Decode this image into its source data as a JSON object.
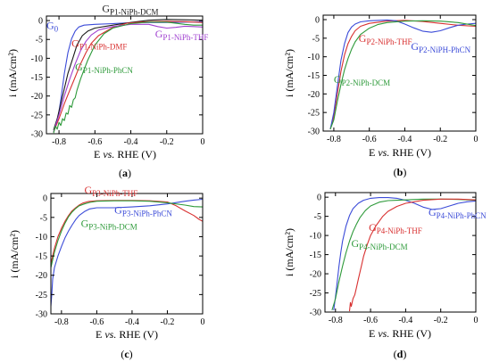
{
  "chart_data": [
    {
      "type": "line",
      "panel_label": "(a)",
      "xlabel": "E vs. RHE (V)",
      "xlabel_parts": [
        "E ",
        "vs.",
        " RHE (V)"
      ],
      "ylabel": "i (mA/cm²)",
      "xlim": [
        -0.87,
        0.0
      ],
      "ylim": [
        -30,
        1.2
      ],
      "xticks": [
        "-0.8",
        "-0.6",
        "-0.4",
        "-0.2",
        "0"
      ],
      "xtick_values": [
        -0.8,
        -0.6,
        -0.4,
        -0.2,
        0.0
      ],
      "yticks": [
        "0",
        "-5",
        "-10",
        "-15",
        "-20",
        "-25",
        "-30"
      ],
      "ytick_values": [
        0,
        -5,
        -10,
        -15,
        -20,
        -25,
        -30
      ],
      "series": [
        {
          "name": "G0",
          "color": "#3b4bd8",
          "x": [
            -0.83,
            -0.81,
            -0.79,
            -0.77,
            -0.75,
            -0.73,
            -0.71,
            -0.69,
            -0.66,
            -0.6,
            -0.5,
            -0.4,
            -0.3,
            -0.2,
            -0.1,
            0.0
          ],
          "y": [
            -29.5,
            -27.0,
            -21.0,
            -14.0,
            -8.5,
            -4.8,
            -2.8,
            -1.7,
            -1.2,
            -1.0,
            -0.8,
            -0.6,
            -0.5,
            -0.5,
            -0.4,
            -0.3
          ]
        },
        {
          "name": "GP1-NiPh-DCM",
          "color": "#1a1a1a",
          "x": [
            -0.83,
            -0.81,
            -0.79,
            -0.77,
            -0.75,
            -0.72,
            -0.7,
            -0.67,
            -0.64,
            -0.6,
            -0.5,
            -0.4,
            -0.3,
            -0.2,
            -0.1,
            0.0
          ],
          "y": [
            -29.0,
            -26.0,
            -22.0,
            -18.0,
            -14.0,
            -9.5,
            -6.5,
            -4.0,
            -2.8,
            -2.0,
            -1.2,
            -0.5,
            0.1,
            0.3,
            0.2,
            0.1
          ]
        },
        {
          "name": "GP1-NiPh-DMF",
          "color": "#d83030",
          "x": [
            -0.83,
            -0.8,
            -0.77,
            -0.74,
            -0.71,
            -0.68,
            -0.65,
            -0.62,
            -0.58,
            -0.5,
            -0.42,
            -0.35,
            -0.3,
            -0.2,
            -0.1,
            0.0
          ],
          "y": [
            -29.5,
            -26.0,
            -22.0,
            -18.5,
            -15.0,
            -11.5,
            -8.5,
            -6.0,
            -4.0,
            -1.8,
            -0.7,
            -0.4,
            -0.3,
            -0.2,
            -0.3,
            -0.5
          ]
        },
        {
          "name": "GP1-NiPh-THF",
          "color": "#a040d0",
          "x": [
            -0.83,
            -0.8,
            -0.77,
            -0.74,
            -0.71,
            -0.68,
            -0.65,
            -0.62,
            -0.58,
            -0.5,
            -0.4,
            -0.3,
            -0.25,
            -0.2,
            -0.15,
            -0.1,
            -0.05,
            0.0
          ],
          "y": [
            -29.5,
            -25.0,
            -20.0,
            -15.5,
            -11.5,
            -8.0,
            -5.5,
            -3.8,
            -2.5,
            -1.6,
            -1.0,
            -1.0,
            -1.6,
            -2.0,
            -1.8,
            -1.5,
            -1.6,
            -1.7
          ]
        },
        {
          "name": "GP1-NiPh-PhCN",
          "color": "#2e9a3a",
          "x": [
            -0.83,
            -0.82,
            -0.81,
            -0.8,
            -0.79,
            -0.78,
            -0.77,
            -0.76,
            -0.75,
            -0.74,
            -0.73,
            -0.72,
            -0.71,
            -0.7,
            -0.68,
            -0.66,
            -0.64,
            -0.62,
            -0.6,
            -0.55,
            -0.5,
            -0.4,
            -0.3,
            -0.2,
            -0.1,
            -0.05,
            0.0
          ],
          "y": [
            -29.8,
            -28.0,
            -28.8,
            -27.0,
            -27.8,
            -26.0,
            -26.5,
            -24.5,
            -24.8,
            -22.5,
            -23.0,
            -21.0,
            -20.5,
            -18.5,
            -15.5,
            -13.0,
            -10.5,
            -8.5,
            -6.5,
            -3.5,
            -2.0,
            -0.8,
            -0.4,
            -0.4,
            -1.0,
            -1.2,
            -1.2
          ]
        }
      ],
      "annotations": [
        {
          "base": "G",
          "sub": "P1-NiPh-DCM",
          "color": "#1a1a1a",
          "x": -0.56,
          "y": 2.3
        },
        {
          "base": "G",
          "sub": "0",
          "color": "#3b4bd8",
          "x": -0.87,
          "y": -2.2
        },
        {
          "base": "G",
          "sub": "P1-NiPh-DMF",
          "color": "#d83030",
          "x": -0.73,
          "y": -7.0
        },
        {
          "base": "G",
          "sub": "P1-NiPh-THF",
          "color": "#a040d0",
          "x": -0.265,
          "y": -4.5
        },
        {
          "base": "G",
          "sub": "P1-NiPh-PhCN",
          "color": "#2e9a3a",
          "x": -0.71,
          "y": -13.2
        }
      ]
    },
    {
      "type": "line",
      "panel_label": "(b)",
      "xlabel": "E vs. RHE (V)",
      "xlabel_parts": [
        "E ",
        "vs.",
        " RHE (V)"
      ],
      "ylabel": "i (mA/cm²)",
      "xlim": [
        -0.86,
        0.0
      ],
      "ylim": [
        -30,
        1.2
      ],
      "xticks": [
        "-0.8",
        "-0.6",
        "-0.4",
        "-0.2",
        "0"
      ],
      "xtick_values": [
        -0.8,
        -0.6,
        -0.4,
        -0.2,
        0.0
      ],
      "yticks": [
        "0",
        "-5",
        "-10",
        "-15",
        "-20",
        "-25",
        "-30"
      ],
      "ytick_values": [
        0,
        -5,
        -10,
        -15,
        -20,
        -25,
        -30
      ],
      "series": [
        {
          "name": "GP2-NiPh-THF",
          "color": "#d83030",
          "x": [
            -0.82,
            -0.8,
            -0.78,
            -0.76,
            -0.74,
            -0.72,
            -0.7,
            -0.68,
            -0.65,
            -0.6,
            -0.5,
            -0.4,
            -0.3,
            -0.2,
            -0.1,
            0.0
          ],
          "y": [
            -29.5,
            -26.0,
            -20.0,
            -14.0,
            -9.5,
            -6.5,
            -4.5,
            -3.0,
            -1.8,
            -1.0,
            -0.4,
            -0.2,
            -0.5,
            -1.0,
            -1.5,
            -1.8
          ]
        },
        {
          "name": "GP2-NiPH-PhCN",
          "color": "#3b4bd8",
          "x": [
            -0.82,
            -0.8,
            -0.78,
            -0.76,
            -0.74,
            -0.72,
            -0.7,
            -0.68,
            -0.65,
            -0.6,
            -0.5,
            -0.45,
            -0.4,
            -0.35,
            -0.3,
            -0.25,
            -0.2,
            -0.15,
            -0.1,
            -0.05,
            0.0
          ],
          "y": [
            -29.5,
            -25.0,
            -18.0,
            -11.0,
            -6.5,
            -3.5,
            -2.0,
            -1.2,
            -0.6,
            -0.3,
            -0.1,
            -0.3,
            -1.2,
            -2.2,
            -3.1,
            -3.4,
            -3.0,
            -2.2,
            -1.5,
            -1.2,
            -1.0
          ]
        },
        {
          "name": "GP2-NiPh-DCM",
          "color": "#2e9a3a",
          "x": [
            -0.82,
            -0.8,
            -0.78,
            -0.76,
            -0.74,
            -0.72,
            -0.7,
            -0.68,
            -0.65,
            -0.6,
            -0.55,
            -0.5,
            -0.4,
            -0.3,
            -0.2,
            -0.1,
            0.0
          ],
          "y": [
            -29.5,
            -27.0,
            -22.0,
            -17.5,
            -13.5,
            -10.5,
            -8.0,
            -6.0,
            -4.0,
            -2.3,
            -1.3,
            -0.8,
            -0.4,
            -0.3,
            -0.4,
            -0.8,
            -1.6
          ]
        }
      ],
      "annotations": [
        {
          "base": "G",
          "sub": "P2-NiPh-THF",
          "color": "#d83030",
          "x": -0.66,
          "y": -6.0
        },
        {
          "base": "G",
          "sub": "P2-NiPH-PhCN",
          "color": "#3b4bd8",
          "x": -0.365,
          "y": -8.2
        },
        {
          "base": "G",
          "sub": "P2-NiPh-DCM",
          "color": "#2e9a3a",
          "x": -0.8,
          "y": -17.0
        }
      ]
    },
    {
      "type": "line",
      "panel_label": "(c)",
      "xlabel": "E vs. RHE (V)",
      "xlabel_parts": [
        "E ",
        "vs.",
        " RHE (V)"
      ],
      "ylabel": "i (mA/cm²)",
      "xlim": [
        -0.86,
        0.0
      ],
      "ylim": [
        -30,
        1.2
      ],
      "xticks": [
        "-0.8",
        "-0.6",
        "-0.4",
        "-0.2",
        "0"
      ],
      "xtick_values": [
        -0.8,
        -0.6,
        -0.4,
        -0.2,
        0.0
      ],
      "yticks": [
        "0",
        "-5",
        "-10",
        "-15",
        "-20",
        "-25",
        "-30"
      ],
      "ytick_values": [
        0,
        -5,
        -10,
        -15,
        -20,
        -25,
        -30
      ],
      "series": [
        {
          "name": "GP3-NiPh-THF",
          "color": "#d83030",
          "x": [
            -0.86,
            -0.84,
            -0.82,
            -0.8,
            -0.78,
            -0.76,
            -0.74,
            -0.72,
            -0.7,
            -0.68,
            -0.65,
            -0.6,
            -0.5,
            -0.4,
            -0.3,
            -0.2,
            -0.15,
            -0.1,
            -0.05,
            -0.02,
            0.0
          ],
          "y": [
            -17.0,
            -13.0,
            -10.0,
            -7.8,
            -6.0,
            -4.5,
            -3.3,
            -2.5,
            -1.8,
            -1.3,
            -0.9,
            -0.7,
            -0.6,
            -0.6,
            -0.7,
            -1.0,
            -2.0,
            -3.3,
            -4.5,
            -5.5,
            -6.0
          ]
        },
        {
          "name": "GP3-NiPh-PhCN",
          "color": "#3b4bd8",
          "x": [
            -0.86,
            -0.855,
            -0.85,
            -0.84,
            -0.82,
            -0.8,
            -0.78,
            -0.76,
            -0.74,
            -0.72,
            -0.7,
            -0.67,
            -0.64,
            -0.6,
            -0.5,
            -0.4,
            -0.3,
            -0.2,
            -0.1,
            -0.05,
            0.0
          ],
          "y": [
            -28.0,
            -25.0,
            -21.0,
            -18.0,
            -15.0,
            -12.5,
            -10.3,
            -8.5,
            -7.0,
            -5.6,
            -4.5,
            -3.5,
            -2.8,
            -2.5,
            -2.5,
            -2.3,
            -2.0,
            -1.5,
            -0.8,
            -0.5,
            -0.3
          ]
        },
        {
          "name": "GP3-NiPh-DCM",
          "color": "#2e9a3a",
          "x": [
            -0.86,
            -0.84,
            -0.82,
            -0.8,
            -0.78,
            -0.76,
            -0.74,
            -0.72,
            -0.7,
            -0.67,
            -0.64,
            -0.6,
            -0.5,
            -0.4,
            -0.3,
            -0.2,
            -0.1,
            -0.05,
            0.0
          ],
          "y": [
            -18.0,
            -14.0,
            -11.0,
            -8.5,
            -6.5,
            -4.8,
            -3.6,
            -2.7,
            -2.0,
            -1.5,
            -1.1,
            -0.8,
            -0.7,
            -0.7,
            -0.8,
            -1.2,
            -1.8,
            -2.2,
            -2.3
          ]
        }
      ],
      "annotations": [
        {
          "base": "G",
          "sub": "P3-NiPh-THF",
          "color": "#d83030",
          "x": -0.67,
          "y": 1.2
        },
        {
          "base": "G",
          "sub": "P3-NiPh-PhCN",
          "color": "#3b4bd8",
          "x": -0.5,
          "y": -4.0
        },
        {
          "base": "G",
          "sub": "P3-NiPh-DCM",
          "color": "#2e9a3a",
          "x": -0.69,
          "y": -7.5
        }
      ]
    },
    {
      "type": "line",
      "panel_label": "(d)",
      "xlabel": "E vs. RHE (V)",
      "xlabel_parts": [
        "E ",
        "vs.",
        " RHE (V)"
      ],
      "ylabel": "i (mA/cm²)",
      "xlim": [
        -0.86,
        0.0
      ],
      "ylim": [
        -30,
        1.2
      ],
      "xticks": [
        "-0.8",
        "-0.6",
        "-0.4",
        "-0.2",
        "0"
      ],
      "xtick_values": [
        -0.8,
        -0.6,
        -0.4,
        -0.2,
        0.0
      ],
      "yticks": [
        "0",
        "-5",
        "-10",
        "-15",
        "-20",
        "-25",
        "-30"
      ],
      "ytick_values": [
        0,
        -5,
        -10,
        -15,
        -20,
        -25,
        -30
      ],
      "series": [
        {
          "name": "GP4-NiPh-PhCN",
          "color": "#3b4bd8",
          "x": [
            -0.81,
            -0.8,
            -0.79,
            -0.78,
            -0.77,
            -0.76,
            -0.74,
            -0.72,
            -0.7,
            -0.67,
            -0.64,
            -0.6,
            -0.55,
            -0.5,
            -0.45,
            -0.4,
            -0.35,
            -0.3,
            -0.25,
            -0.2,
            -0.15,
            -0.1,
            -0.05,
            0.0
          ],
          "y": [
            -29.5,
            -26.0,
            -22.0,
            -18.0,
            -14.5,
            -11.5,
            -7.5,
            -4.8,
            -3.0,
            -1.6,
            -0.8,
            -0.3,
            -0.1,
            -0.1,
            -0.3,
            -0.8,
            -1.6,
            -2.6,
            -3.2,
            -3.0,
            -2.3,
            -1.6,
            -1.2,
            -1.0
          ]
        },
        {
          "name": "GP4-NiPh-DCM",
          "color": "#2e9a3a",
          "x": [
            -0.82,
            -0.8,
            -0.78,
            -0.76,
            -0.74,
            -0.72,
            -0.7,
            -0.68,
            -0.66,
            -0.63,
            -0.6,
            -0.55,
            -0.5,
            -0.45,
            -0.4,
            -0.3,
            -0.2,
            -0.1,
            0.0
          ],
          "y": [
            -29.5,
            -26.5,
            -22.0,
            -18.0,
            -14.5,
            -11.5,
            -9.0,
            -7.0,
            -5.3,
            -3.5,
            -2.3,
            -1.3,
            -0.9,
            -0.8,
            -0.7,
            -0.5,
            -0.5,
            -0.6,
            -0.8
          ]
        },
        {
          "name": "GP4-NiPh-THF",
          "color": "#d83030",
          "x": [
            -0.72,
            -0.715,
            -0.71,
            -0.7,
            -0.69,
            -0.68,
            -0.67,
            -0.66,
            -0.65,
            -0.64,
            -0.62,
            -0.6,
            -0.57,
            -0.53,
            -0.5,
            -0.45,
            -0.4,
            -0.3,
            -0.2,
            -0.1,
            0.0
          ],
          "y": [
            -29.8,
            -27.5,
            -28.5,
            -26.5,
            -25.5,
            -23.5,
            -21.5,
            -19.5,
            -17.5,
            -15.5,
            -12.5,
            -10.0,
            -7.5,
            -5.0,
            -3.7,
            -2.4,
            -1.6,
            -0.8,
            -0.5,
            -0.5,
            -0.7
          ]
        }
      ],
      "annotations": [
        {
          "base": "G",
          "sub": "P4-NiPh-PhCN",
          "color": "#3b4bd8",
          "x": -0.27,
          "y": -4.8
        },
        {
          "base": "G",
          "sub": "P4-NiPh-THF",
          "color": "#d83030",
          "x": -0.61,
          "y": -8.8
        },
        {
          "base": "G",
          "sub": "P4-NiPh-DCM",
          "color": "#2e9a3a",
          "x": -0.71,
          "y": -13.0
        }
      ]
    }
  ]
}
